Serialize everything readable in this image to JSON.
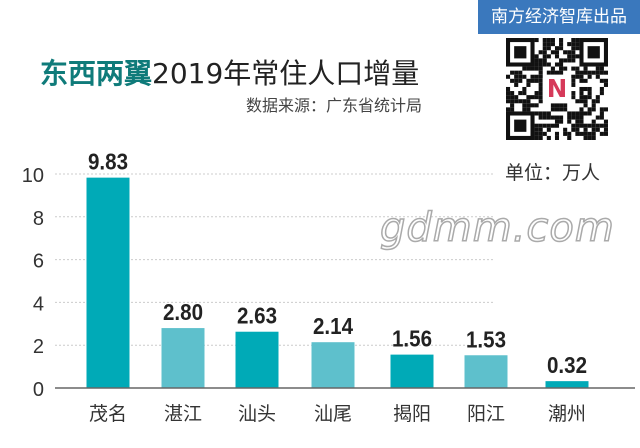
{
  "badge": "南方经济智库出品",
  "title_highlight": "东西两翼",
  "title_rest": "2019年常住人口增量",
  "source": "数据来源：广东省统计局",
  "unit": "单位：万人",
  "qr_logo": "N",
  "watermark": "gdmm.com",
  "colors": {
    "dark": "#00aab7",
    "light": "#5ec0cc",
    "title": "#0f7b7a",
    "badge": "#3a78bd"
  },
  "chart_data": {
    "type": "bar",
    "title": "东西两翼2019年常住人口增量",
    "categories": [
      "茂名",
      "湛江",
      "汕头",
      "汕尾",
      "揭阳",
      "阳江",
      "潮州"
    ],
    "values": [
      9.83,
      2.8,
      2.63,
      2.14,
      1.56,
      1.53,
      0.32
    ],
    "value_labels": [
      "9.83",
      "2.80",
      "2.63",
      "2.14",
      "1.56",
      "1.53",
      "0.32"
    ],
    "ylabel": "单位：万人",
    "ylim": [
      0,
      10
    ],
    "yticks": [
      0,
      2,
      4,
      6,
      8,
      10
    ],
    "grid": true,
    "bar_colors": [
      "dark",
      "light",
      "dark",
      "light",
      "dark",
      "light",
      "dark"
    ]
  }
}
